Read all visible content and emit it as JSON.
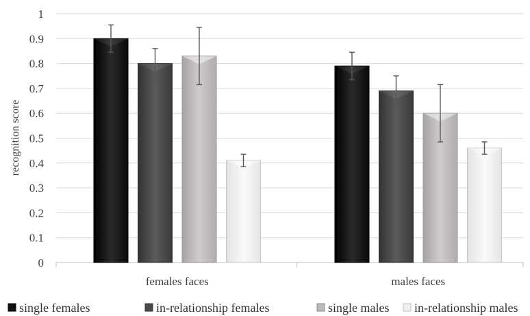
{
  "chart_data": {
    "type": "bar",
    "categories": [
      "females faces",
      "males faces"
    ],
    "series": [
      {
        "name": "single females",
        "values": [
          0.9,
          0.79
        ],
        "errors": [
          0.055,
          0.055
        ],
        "color": "#1a1a1a"
      },
      {
        "name": "in-relationship females",
        "values": [
          0.8,
          0.69
        ],
        "errors": [
          0.06,
          0.06
        ],
        "color": "#4a4a4a"
      },
      {
        "name": "single males",
        "values": [
          0.83,
          0.6
        ],
        "errors": [
          0.115,
          0.115
        ],
        "color": "#b8b4b4"
      },
      {
        "name": "in-relationship males",
        "values": [
          0.41,
          0.46
        ],
        "errors": [
          0.025,
          0.025
        ],
        "color": "#ececec"
      }
    ],
    "title": "",
    "xlabel": "",
    "ylabel": "recognition score",
    "ylim": [
      0,
      1
    ],
    "yticks": [
      "0",
      "0.1",
      "0.2",
      "0.3",
      "0.4",
      "0.5",
      "0.6",
      "0.7",
      "0.8",
      "0.9",
      "1"
    ],
    "grid": true,
    "legend": "bottom"
  }
}
